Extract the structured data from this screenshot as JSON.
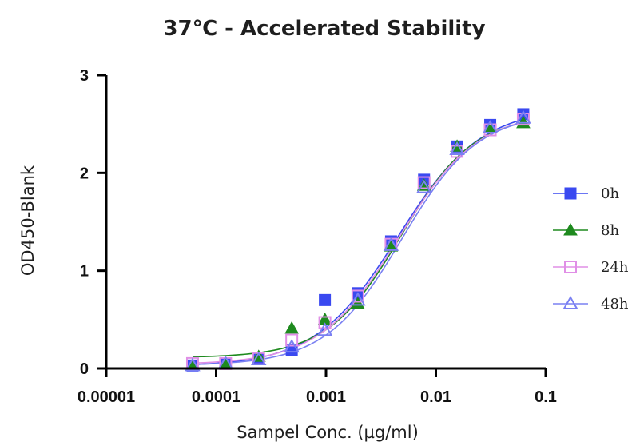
{
  "chart_data": {
    "type": "scatter",
    "title": "37℃ - Accelerated Stability",
    "xlabel": "Sampel Conc. (µg/ml)",
    "ylabel": "OD450-Blank",
    "x_scale": "log",
    "xlim": [
      1e-05,
      0.1
    ],
    "ylim": [
      0,
      3
    ],
    "x_ticks": [
      {
        "value": 1e-05,
        "label": "0.00001"
      },
      {
        "value": 0.0001,
        "label": "0.0001"
      },
      {
        "value": 0.001,
        "label": "0.001"
      },
      {
        "value": 0.01,
        "label": "0.01"
      },
      {
        "value": 0.1,
        "label": "0.1"
      }
    ],
    "y_ticks": [
      {
        "value": 0,
        "label": "0"
      },
      {
        "value": 1,
        "label": "1"
      },
      {
        "value": 2,
        "label": "2"
      },
      {
        "value": 3,
        "label": "3"
      }
    ],
    "legend_position": "right",
    "fitted_curves": true,
    "series": [
      {
        "name": "0h",
        "color": "#3a49f0",
        "marker": "square",
        "filled": true,
        "x": [
          6.1e-05,
          0.000122,
          0.000244,
          0.000488,
          0.000977,
          0.00195,
          0.00391,
          0.00781,
          0.0156,
          0.03125,
          0.0625
        ],
        "y": [
          0.03,
          0.05,
          0.1,
          0.19,
          0.7,
          0.77,
          1.3,
          1.93,
          2.27,
          2.49,
          2.6
        ],
        "fit": {
          "bottom": 0.02,
          "top": 2.67,
          "ec50": 0.0045,
          "hill": 1.15
        }
      },
      {
        "name": "8h",
        "color": "#1e8a1e",
        "marker": "triangle",
        "filled": true,
        "x": [
          6.1e-05,
          0.000122,
          0.000244,
          0.000488,
          0.000977,
          0.00195,
          0.00391,
          0.00781,
          0.0156,
          0.03125,
          0.0625
        ],
        "y": [
          0.03,
          0.05,
          0.12,
          0.41,
          0.5,
          0.66,
          1.25,
          1.87,
          2.27,
          2.46,
          2.51
        ],
        "fit": {
          "bottom": 0.11,
          "top": 2.6,
          "ec50": 0.0048,
          "hill": 1.3
        }
      },
      {
        "name": "24h",
        "color": "#e08fe6",
        "marker": "square",
        "filled": false,
        "x": [
          6.1e-05,
          0.000122,
          0.000244,
          0.000488,
          0.000977,
          0.00195,
          0.00391,
          0.00781,
          0.0156,
          0.03125,
          0.0625
        ],
        "y": [
          0.05,
          0.05,
          0.1,
          0.29,
          0.47,
          0.74,
          1.27,
          1.9,
          2.22,
          2.44,
          2.55
        ],
        "fit": {
          "bottom": 0.04,
          "top": 2.63,
          "ec50": 0.0046,
          "hill": 1.2
        }
      },
      {
        "name": "48h",
        "color": "#7a80f2",
        "marker": "triangle",
        "filled": false,
        "x": [
          6.1e-05,
          0.000122,
          0.000244,
          0.000488,
          0.000977,
          0.00195,
          0.00391,
          0.00781,
          0.0156,
          0.03125,
          0.0625
        ],
        "y": [
          0.03,
          0.05,
          0.09,
          0.22,
          0.39,
          0.7,
          1.26,
          1.85,
          2.24,
          2.46,
          2.56
        ],
        "fit": {
          "bottom": 0.03,
          "top": 2.62,
          "ec50": 0.0049,
          "hill": 1.25
        }
      }
    ]
  }
}
